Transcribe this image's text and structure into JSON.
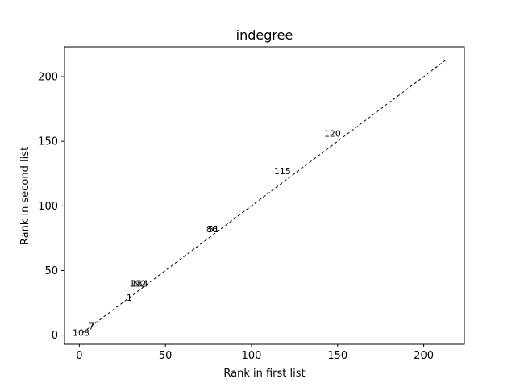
{
  "chart_data": {
    "type": "scatter",
    "title": "indegree",
    "xlabel": "Rank in first list",
    "ylabel": "Rank in second list",
    "xlim": [
      -8.6,
      223.6
    ],
    "ylim": [
      -7.1,
      223.1
    ],
    "xticks": [
      0,
      50,
      100,
      150,
      200
    ],
    "yticks": [
      0,
      50,
      100,
      150,
      200
    ],
    "grid": false,
    "reference_line": {
      "style": "dashed",
      "color": "#000000",
      "from": [
        2,
        2
      ],
      "to": [
        213,
        213
      ]
    },
    "points": [
      {
        "label": "108",
        "x": 1,
        "y": 2
      },
      {
        "label": "7",
        "x": 7,
        "y": 7
      },
      {
        "label": "1",
        "x": 29,
        "y": 29
      },
      {
        "label": "192",
        "x": 34,
        "y": 40
      },
      {
        "label": "184",
        "x": 35,
        "y": 40
      },
      {
        "label": "86",
        "x": 77,
        "y": 82
      },
      {
        "label": "51",
        "x": 78,
        "y": 82
      },
      {
        "label": "115",
        "x": 118,
        "y": 127
      },
      {
        "label": "120",
        "x": 147,
        "y": 156
      }
    ]
  }
}
